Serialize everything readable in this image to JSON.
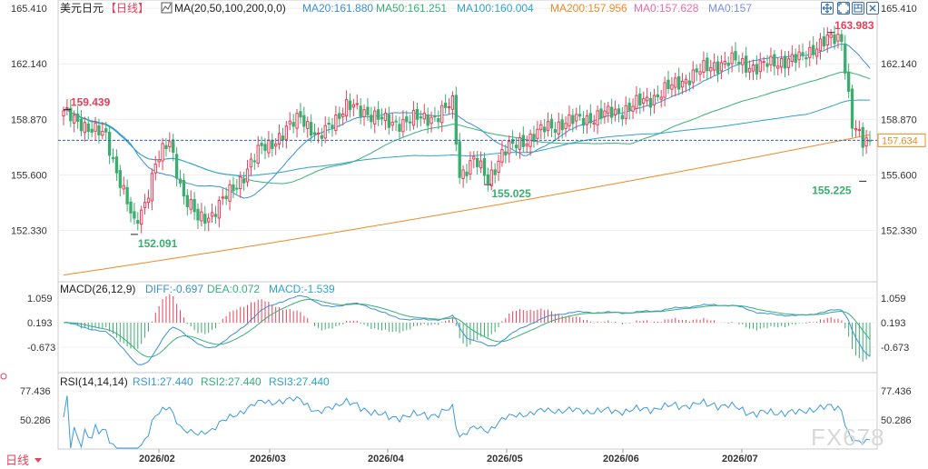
{
  "header": {
    "symbol": "美元日元",
    "period": "【日线】",
    "ma_label": "MA(20,50,100,200,0,0)",
    "ma_values": [
      {
        "text": "MA20:161.880",
        "color": "#3b8fd6"
      },
      {
        "text": "MA50:161.251",
        "color": "#36b07a"
      },
      {
        "text": "MA100:160.004",
        "color": "#2fa3c9"
      },
      {
        "text": "MA200:157.956",
        "color": "#f08a24"
      },
      {
        "text": "MA0:157.628",
        "color": "#e86fa8"
      },
      {
        "text": "MA0:157",
        "color": "#7a8fe6"
      }
    ]
  },
  "macd_header": {
    "label": "MACD(26,12,9)",
    "diff": "DIFF:-0.697",
    "dea": "DEA:0.072",
    "macd": "MACD:-1.539"
  },
  "rsi_header": {
    "label": "RSI(14,14,14)",
    "rsi1": "RSI1:27.440",
    "rsi2": "RSI2:27.440",
    "rsi3": "RSI3:27.440"
  },
  "period_badge": "日线",
  "watermark": "FX678",
  "current_price": "157.634",
  "colors": {
    "up": "#e8405a",
    "down": "#3aae6e",
    "ma20": "#3b8fd6",
    "ma50": "#36b07a",
    "ma100": "#2fa3c9",
    "ma200": "#f08a24",
    "diff": "#3b8fd6",
    "dea": "#36b07a",
    "rsi": "#3b9ae0"
  },
  "chart_data": {
    "type": "candlestick",
    "x_labels": [
      "2026/02",
      "2026/03",
      "2026/04",
      "2026/05",
      "2026/06",
      "2026/07"
    ],
    "price_axis": {
      "ticks": [
        "165.410",
        "162.140",
        "158.870",
        "155.600",
        "152.330"
      ],
      "range": [
        149.3,
        165.9
      ]
    },
    "macd_axis": {
      "ticks": [
        "1.059",
        "0.193",
        "-0.673"
      ]
    },
    "rsi_axis": {
      "ticks": [
        "77.436",
        "50.286"
      ]
    },
    "annotations": [
      {
        "text": "159.439",
        "kind": "high",
        "color": "#e8405a"
      },
      {
        "text": "152.091",
        "kind": "low",
        "color": "#3aae6e"
      },
      {
        "text": "155.025",
        "kind": "low",
        "color": "#3aae6e"
      },
      {
        "text": "163.983",
        "kind": "high",
        "color": "#e8405a"
      },
      {
        "text": "155.225",
        "kind": "low",
        "color": "#3aae6e"
      }
    ],
    "close_anchors": [
      [
        0,
        159.2
      ],
      [
        5,
        158.7
      ],
      [
        8,
        158.2
      ],
      [
        12,
        157.9
      ],
      [
        16,
        155.2
      ],
      [
        20,
        152.6
      ],
      [
        23,
        154.0
      ],
      [
        26,
        156.2
      ],
      [
        30,
        157.6
      ],
      [
        34,
        154.3
      ],
      [
        38,
        153.0
      ],
      [
        42,
        153.3
      ],
      [
        46,
        154.3
      ],
      [
        51,
        155.6
      ],
      [
        56,
        157.2
      ],
      [
        62,
        157.9
      ],
      [
        67,
        159.2
      ],
      [
        72,
        157.6
      ],
      [
        76,
        158.8
      ],
      [
        80,
        159.6
      ],
      [
        86,
        159.3
      ],
      [
        92,
        158.6
      ],
      [
        100,
        158.9
      ],
      [
        106,
        159.1
      ],
      [
        110,
        159.8
      ],
      [
        112,
        155.6
      ],
      [
        116,
        156.5
      ],
      [
        120,
        155.3
      ],
      [
        124,
        156.9
      ],
      [
        130,
        157.6
      ],
      [
        136,
        158.3
      ],
      [
        142,
        158.7
      ],
      [
        150,
        159.0
      ],
      [
        158,
        159.4
      ],
      [
        166,
        160.1
      ],
      [
        172,
        160.8
      ],
      [
        178,
        161.5
      ],
      [
        184,
        162.1
      ],
      [
        190,
        162.3
      ],
      [
        196,
        161.9
      ],
      [
        202,
        162.3
      ],
      [
        208,
        162.4
      ],
      [
        212,
        163.1
      ],
      [
        216,
        163.5
      ],
      [
        220,
        163.7
      ],
      [
        222,
        160.3
      ],
      [
        223,
        158.6
      ],
      [
        226,
        157.4
      ],
      [
        228,
        157.63
      ]
    ],
    "ma200_start": 149.7,
    "ma200_end": 157.96,
    "last_values": {
      "ma20": 161.88,
      "ma50": 161.251,
      "ma100": 160.004,
      "ma200": 157.956
    }
  }
}
